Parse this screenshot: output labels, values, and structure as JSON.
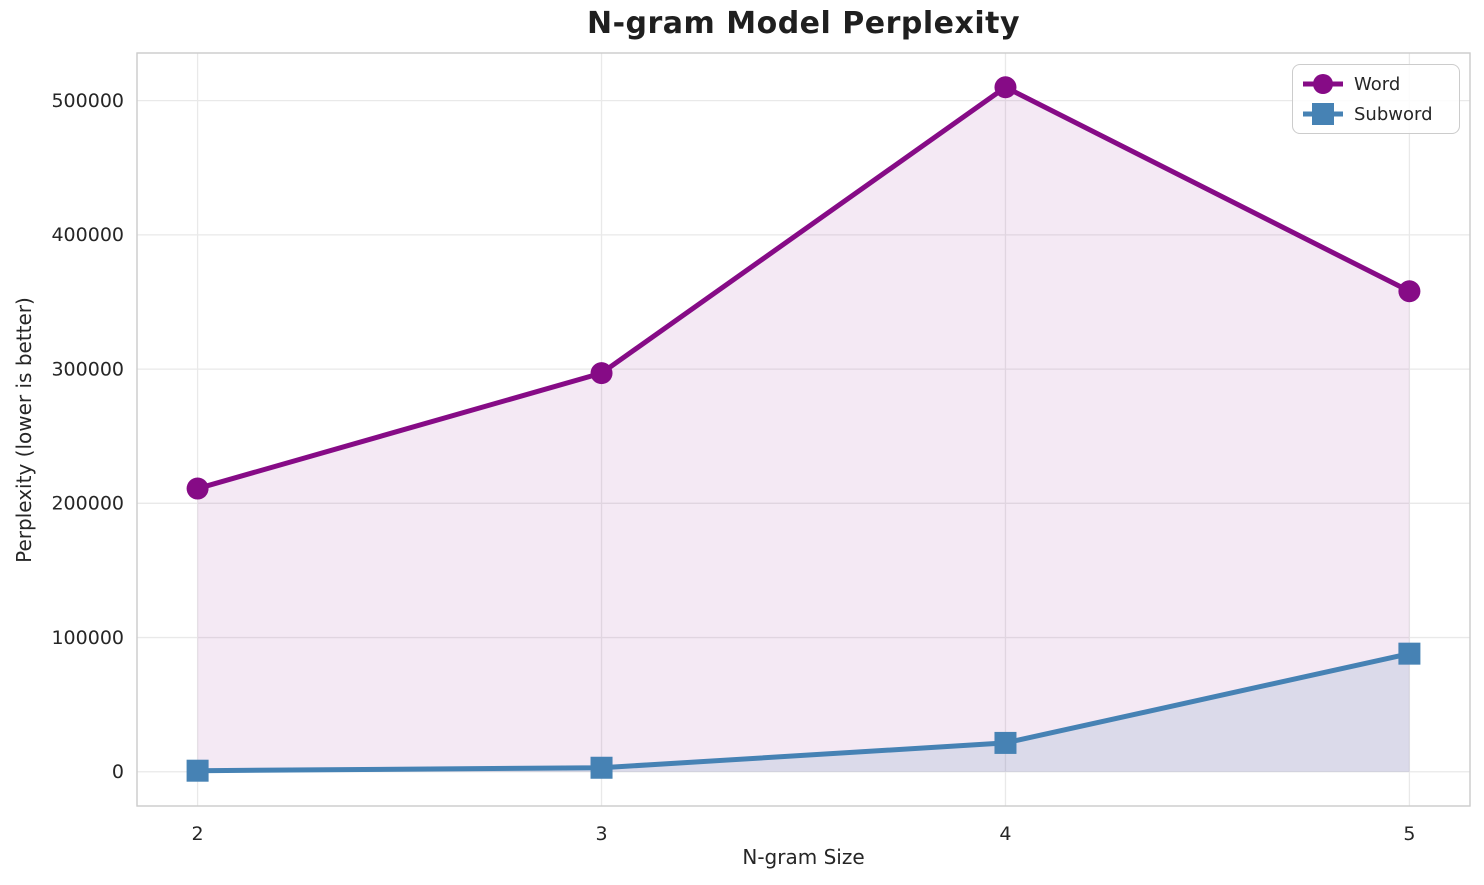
{
  "chart_data": {
    "type": "line",
    "title": "N-gram Model Perplexity",
    "xlabel": "N-gram Size",
    "ylabel": "Perplexity (lower is better)",
    "x": [
      2,
      3,
      4,
      5
    ],
    "series": [
      {
        "name": "Word",
        "marker": "circle",
        "color": "#860B86",
        "fill": "rgba(134,11,134,0.09)",
        "values": [
          211000,
          297000,
          510000,
          358000
        ]
      },
      {
        "name": "Subword",
        "marker": "square",
        "color": "#4682B4",
        "fill": "rgba(70,130,180,0.14)",
        "values": [
          800,
          3000,
          21500,
          88000
        ]
      }
    ],
    "xticks": [
      2,
      3,
      4,
      5
    ],
    "yticks": [
      0,
      100000,
      200000,
      300000,
      400000,
      500000
    ],
    "xlim": [
      1.85,
      5.15
    ],
    "ylim": [
      -25500,
      535500
    ],
    "grid": true,
    "legend_position": "upper right",
    "area_fill_baseline": 0,
    "grid_color": "#e9e9e9",
    "spine_color": "#cbcbcb",
    "text_color": "#262626"
  }
}
